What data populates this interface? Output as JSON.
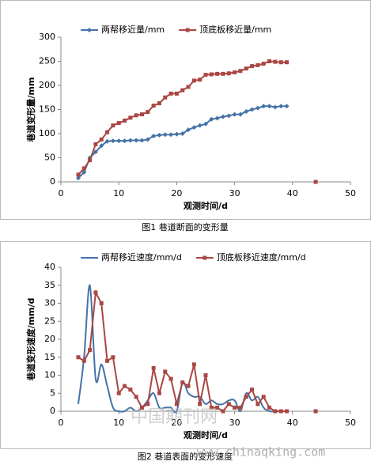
{
  "chart_data": [
    {
      "type": "line",
      "title": null,
      "x_label": "观测时间/d",
      "y_label": "巷道变形量/mm",
      "x": [
        3,
        4,
        5,
        6,
        7,
        8,
        9,
        10,
        11,
        12,
        13,
        14,
        15,
        16,
        17,
        18,
        19,
        20,
        21,
        22,
        23,
        24,
        25,
        26,
        27,
        28,
        29,
        30,
        31,
        32,
        33,
        34,
        35,
        36,
        37,
        38,
        39,
        40,
        41,
        42,
        43,
        44
      ],
      "series": [
        {
          "name": "两帮移近量/mm",
          "color": "#4572a7",
          "marker": "diamond",
          "values": [
            8,
            20,
            50,
            62,
            75,
            84,
            85,
            85,
            85,
            86,
            86,
            86,
            88,
            95,
            97,
            98,
            98,
            99,
            100,
            108,
            113,
            117,
            120,
            130,
            132,
            135,
            137,
            140,
            140,
            146,
            150,
            153,
            157,
            157,
            155,
            157,
            157,
            null,
            null,
            null,
            null,
            null
          ]
        },
        {
          "name": "顶底板移近量/mm",
          "color": "#aa4643",
          "marker": "square",
          "values": [
            15,
            28,
            45,
            78,
            88,
            103,
            117,
            122,
            127,
            133,
            138,
            140,
            145,
            158,
            163,
            175,
            183,
            183,
            190,
            197,
            210,
            212,
            222,
            223,
            224,
            224,
            225,
            227,
            230,
            235,
            240,
            242,
            245,
            250,
            249,
            248,
            248,
            null,
            null,
            null,
            null,
            0
          ]
        }
      ],
      "xlim": [
        0,
        50
      ],
      "xticks": [
        0,
        10,
        20,
        30,
        40,
        50
      ],
      "ylim": [
        0,
        300
      ],
      "yticks": [
        0,
        50,
        100,
        150,
        200,
        250,
        300
      ],
      "grid": false,
      "legend": "top"
    },
    {
      "type": "line",
      "title": null,
      "x_label": "观测时间/d",
      "y_label": "巷道变形速度/mm/d",
      "x": [
        3,
        4,
        5,
        6,
        7,
        8,
        9,
        10,
        11,
        12,
        13,
        14,
        15,
        16,
        17,
        18,
        19,
        20,
        21,
        22,
        23,
        24,
        25,
        26,
        27,
        28,
        29,
        30,
        31,
        32,
        33,
        34,
        35,
        36,
        37,
        38,
        39,
        40,
        41,
        42,
        43,
        44
      ],
      "series": [
        {
          "name": "两帮移近速度/mm/d",
          "color": "#4572a7",
          "marker": "none",
          "smooth": true,
          "values": [
            2,
            15,
            35,
            9,
            13,
            7,
            1,
            0,
            0,
            1,
            0,
            1,
            3,
            5,
            1,
            1,
            1,
            0,
            8,
            5,
            4,
            4,
            2,
            3,
            2,
            2,
            3,
            3,
            0,
            5,
            3,
            4,
            1,
            0,
            0,
            0,
            0,
            null,
            null,
            null,
            null,
            null
          ]
        },
        {
          "name": "顶底板移近速度/mm/d",
          "color": "#aa4643",
          "marker": "square",
          "values": [
            15,
            14,
            17,
            33,
            30,
            14,
            15,
            5,
            7,
            6,
            4,
            1,
            2,
            12,
            5,
            11,
            9,
            2,
            8,
            7,
            13,
            2,
            10,
            1,
            1,
            0,
            2,
            1,
            1,
            4,
            6,
            2,
            4,
            1,
            0,
            0,
            0,
            null,
            null,
            null,
            null,
            0
          ]
        }
      ],
      "xlim": [
        0,
        50
      ],
      "xticks": [
        0,
        10,
        20,
        30,
        40,
        50
      ],
      "ylim": [
        0,
        40
      ],
      "yticks": [
        0,
        5,
        10,
        15,
        20,
        25,
        30,
        35,
        40
      ],
      "grid": false,
      "legend": "top"
    }
  ],
  "captions": [
    "图1 巷道断面的变形量",
    "图2 巷道表面的变形速度"
  ],
  "watermark": [
    "中国期刊网",
    "www.chinaqking.com"
  ]
}
